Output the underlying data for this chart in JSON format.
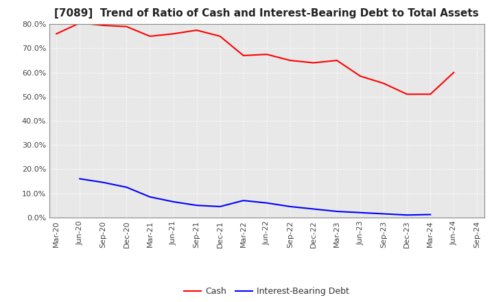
{
  "title": "[7089]  Trend of Ratio of Cash and Interest-Bearing Debt to Total Assets",
  "x_labels": [
    "Mar-20",
    "Jun-20",
    "Sep-20",
    "Dec-20",
    "Mar-21",
    "Jun-21",
    "Sep-21",
    "Dec-21",
    "Mar-22",
    "Jun-22",
    "Sep-22",
    "Dec-22",
    "Mar-23",
    "Jun-23",
    "Sep-23",
    "Dec-23",
    "Mar-24",
    "Jun-24",
    "Sep-24"
  ],
  "cash": [
    76.0,
    80.5,
    79.5,
    79.0,
    75.0,
    76.0,
    77.5,
    75.0,
    67.0,
    67.5,
    65.0,
    64.0,
    65.0,
    58.5,
    55.5,
    51.0,
    51.0,
    60.0,
    null
  ],
  "ibd": [
    null,
    16.0,
    14.5,
    12.5,
    8.5,
    6.5,
    5.0,
    4.5,
    7.0,
    6.0,
    4.5,
    3.5,
    2.5,
    2.0,
    1.5,
    1.0,
    1.2,
    null,
    null
  ],
  "cash_color": "#ff0000",
  "ibd_color": "#0000ff",
  "ylim": [
    0,
    80
  ],
  "yticks": [
    0,
    10,
    20,
    30,
    40,
    50,
    60,
    70,
    80
  ],
  "background_color": "#ffffff",
  "plot_bg_color": "#e8e8e8",
  "grid_color": "#ffffff",
  "title_fontsize": 11,
  "tick_fontsize": 8,
  "legend_labels": [
    "Cash",
    "Interest-Bearing Debt"
  ]
}
